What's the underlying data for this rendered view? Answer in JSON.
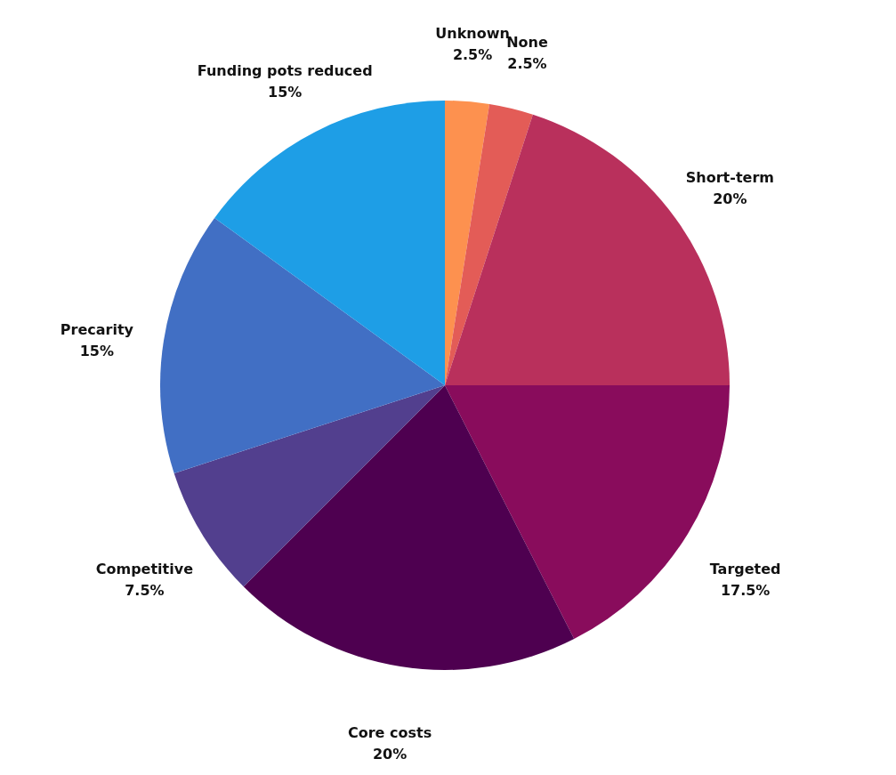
{
  "chart_data": {
    "type": "pie",
    "categories": [
      "Unknown",
      "None",
      "Short-term",
      "Targeted",
      "Core costs",
      "Competitive",
      "Precarity",
      "Funding pots reduced"
    ],
    "values": [
      2.5,
      2.5,
      20,
      17.5,
      20,
      7.5,
      15,
      15
    ],
    "colors": [
      "#fd914f",
      "#e35c57",
      "#b9305c",
      "#890c5c",
      "#4e0050",
      "#523f8e",
      "#416fc4",
      "#1e9ee6"
    ],
    "value_labels": [
      "2.5%",
      "2.5%",
      "20%",
      "17.5%",
      "20%",
      "7.5%",
      "15%",
      "15%"
    ]
  }
}
